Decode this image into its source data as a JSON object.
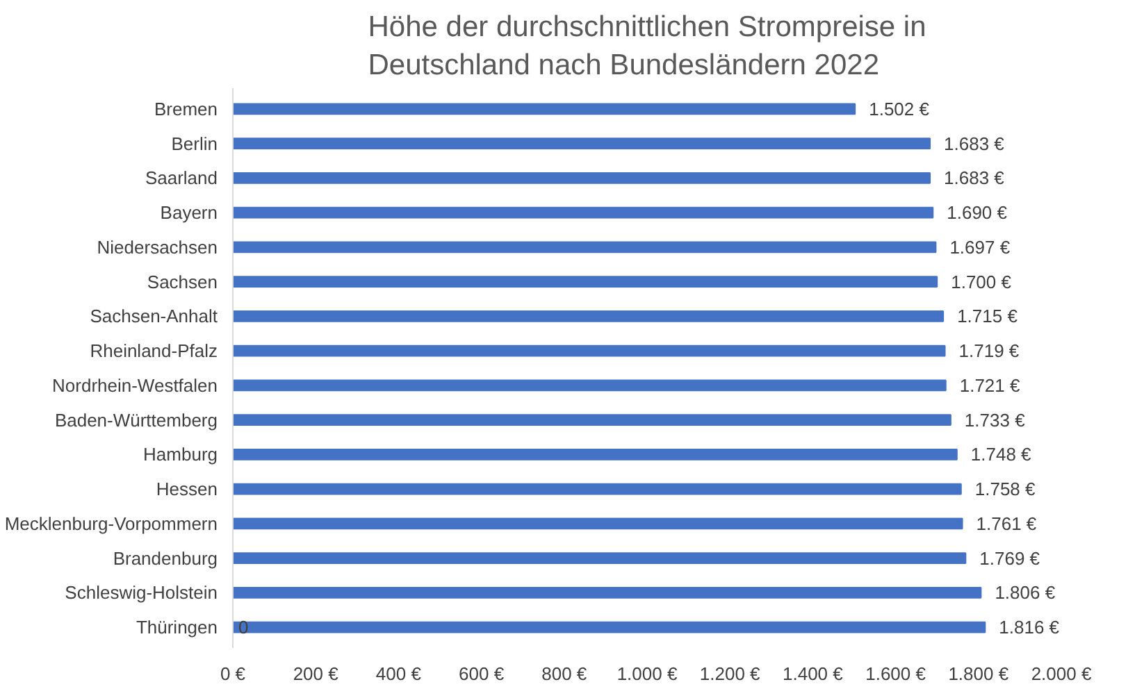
{
  "chart_data": {
    "type": "bar",
    "orientation": "horizontal",
    "title": "Höhe der durchschnittlichen Strompreise in Deutschland nach Bundesländern 2022",
    "categories": [
      "Bremen",
      "Berlin",
      "Saarland",
      "Bayern",
      "Niedersachsen",
      "Sachsen",
      "Sachsen-Anhalt",
      "Rheinland-Pfalz",
      "Nordrhein-Westfalen",
      "Baden-Württemberg",
      "Hamburg",
      "Hessen",
      "Mecklenburg-Vorpommern",
      "Brandenburg",
      "Schleswig-Holstein",
      "Thüringen"
    ],
    "values": [
      1502,
      1683,
      1683,
      1690,
      1697,
      1700,
      1715,
      1719,
      1721,
      1733,
      1748,
      1758,
      1761,
      1769,
      1806,
      1816
    ],
    "value_labels": [
      "1.502 €",
      "1.683 €",
      "1.683 €",
      "1.690 €",
      "1.697 €",
      "1.700 €",
      "1.715 €",
      "1.719 €",
      "1.721 €",
      "1.733 €",
      "1.748 €",
      "1.758 €",
      "1.761 €",
      "1.769 €",
      "1.806 €",
      "1.816 €"
    ],
    "color": "#4472c4",
    "xlim": [
      0,
      2000
    ],
    "xticks": [
      {
        "value": 0,
        "label": "0 €"
      },
      {
        "value": 200,
        "label": "200 €"
      },
      {
        "value": 400,
        "label": "400 €"
      },
      {
        "value": 600,
        "label": "600 €"
      },
      {
        "value": 800,
        "label": "800 €"
      },
      {
        "value": 1000,
        "label": "1.000 €"
      },
      {
        "value": 1200,
        "label": "1.200 €"
      },
      {
        "value": 1400,
        "label": "1.400 €"
      },
      {
        "value": 1600,
        "label": "1.600 €"
      },
      {
        "value": 1800,
        "label": "1.800 €"
      },
      {
        "value": 2000,
        "label": "2.000 €"
      }
    ],
    "annotations": [
      {
        "text": "0",
        "x": 0,
        "y": "Thüringen"
      }
    ],
    "grid": false
  }
}
